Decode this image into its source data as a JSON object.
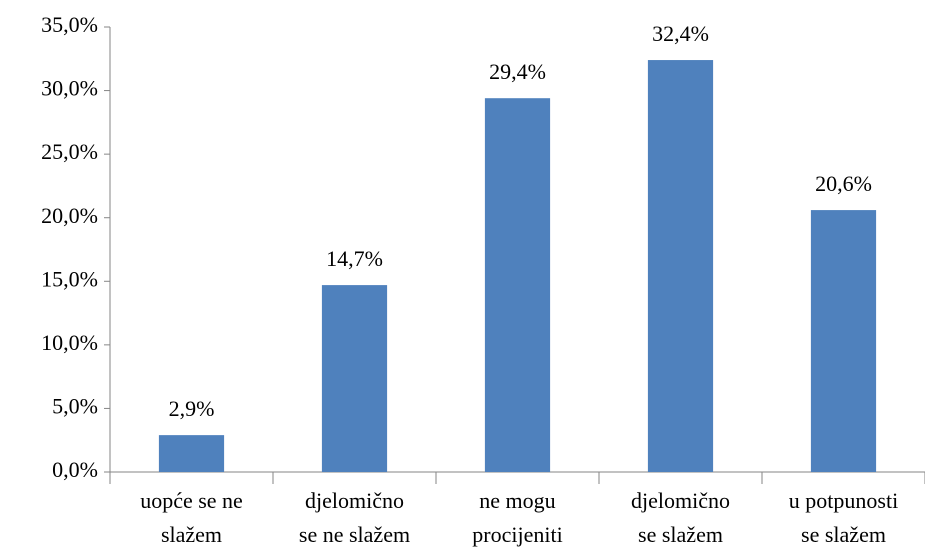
{
  "chart_data": {
    "type": "bar",
    "categories": [
      [
        "uopće se ne",
        "slažem"
      ],
      [
        "djelomično",
        "se ne slažem"
      ],
      [
        "ne mogu",
        "procijeniti"
      ],
      [
        "djelomično",
        "se slažem"
      ],
      [
        "u potpunosti",
        "se slažem"
      ]
    ],
    "values": [
      2.9,
      14.7,
      29.4,
      32.4,
      20.6
    ],
    "value_labels": [
      "2,9%",
      "14,7%",
      "29,4%",
      "32,4%",
      "20,6%"
    ],
    "color": "#4f81bd",
    "ylim": [
      0,
      35
    ],
    "yticks": [
      {
        "value": 0,
        "label": "0,0%"
      },
      {
        "value": 5,
        "label": "5,0%"
      },
      {
        "value": 10,
        "label": "10,0%"
      },
      {
        "value": 15,
        "label": "15,0%"
      },
      {
        "value": 20,
        "label": "20,0%"
      },
      {
        "value": 25,
        "label": "25,0%"
      },
      {
        "value": 30,
        "label": "30,0%"
      },
      {
        "value": 35,
        "label": "35,0%"
      }
    ],
    "grid": false
  }
}
